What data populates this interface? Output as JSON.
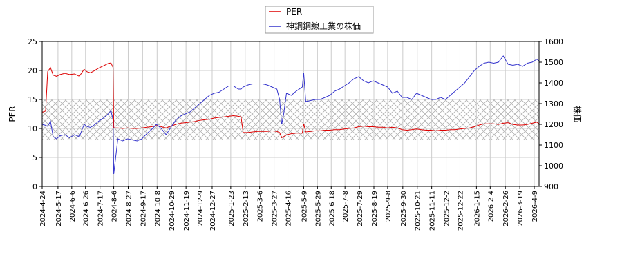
{
  "chart_data": {
    "type": "line",
    "legend": {
      "placement": "top-center",
      "entries": [
        {
          "label": "PER",
          "color": "#dd0000"
        },
        {
          "label": "神鋼鋼線工業の株価",
          "color": "#3333cc"
        }
      ]
    },
    "ylabel_left": "PER",
    "ylabel_right": "株価",
    "ylim_left": [
      0,
      25
    ],
    "ylim_right": [
      900,
      1600
    ],
    "yticks_left": [
      "0",
      "5",
      "10",
      "15",
      "20",
      "25"
    ],
    "yticks_right": [
      "900",
      "1000",
      "1100",
      "1200",
      "1300",
      "1400",
      "1500",
      "1600"
    ],
    "x_tick_labels": [
      "2024-4-24",
      "2024-5-17",
      "2024-6-6",
      "2024-6-26",
      "2024-7-17",
      "2024-8-6",
      "2024-8-27",
      "2024-9-17",
      "2024-10-8",
      "2024-10-29",
      "2024-11-19",
      "2024-12-9",
      "2024-12-27",
      "2025-1-23",
      "2025-2-13",
      "2025-3-6",
      "2025-3-27",
      "2025-4-16",
      "2025-5-9",
      "2025-5-29",
      "2025-6-18",
      "2025-7-8",
      "2025-7-29",
      "2025-8-19",
      "2025-9-8",
      "2025-9-30",
      "2025-10-21",
      "2025-11-11",
      "2025-12-2",
      "2025-12-22",
      "2026-1-15",
      "2026-2-4",
      "2026-2-26",
      "2026-3-19",
      "2026-4-9"
    ],
    "x_range": [
      "2024-4-24",
      "2026-4-16"
    ],
    "grid": true,
    "shaded_band_left": [
      8,
      15
    ],
    "series": [
      {
        "name": "PER",
        "axis": "left",
        "color": "#dd0000",
        "x": [
          "2024-4-24",
          "2024-4-29",
          "2024-5-2",
          "2024-5-6",
          "2024-5-10",
          "2024-5-15",
          "2024-5-20",
          "2024-5-27",
          "2024-6-3",
          "2024-6-10",
          "2024-6-17",
          "2024-6-24",
          "2024-6-28",
          "2024-7-3",
          "2024-7-8",
          "2024-7-15",
          "2024-7-22",
          "2024-7-29",
          "2024-8-2",
          "2024-8-5",
          "2024-8-6",
          "2024-8-12",
          "2024-8-19",
          "2024-8-26",
          "2024-9-2",
          "2024-9-9",
          "2024-9-16",
          "2024-9-23",
          "2024-9-30",
          "2024-10-7",
          "2024-10-14",
          "2024-10-21",
          "2024-10-28",
          "2024-11-4",
          "2024-11-11",
          "2024-11-18",
          "2024-11-25",
          "2024-12-2",
          "2024-12-9",
          "2024-12-16",
          "2024-12-23",
          "2024-12-30",
          "2025-1-6",
          "2025-1-13",
          "2025-1-20",
          "2025-1-27",
          "2025-2-3",
          "2025-2-7",
          "2025-2-10",
          "2025-2-17",
          "2025-2-24",
          "2025-3-3",
          "2025-3-10",
          "2025-3-17",
          "2025-3-24",
          "2025-3-31",
          "2025-4-4",
          "2025-4-7",
          "2025-4-10",
          "2025-4-14",
          "2025-4-21",
          "2025-4-28",
          "2025-5-7",
          "2025-5-9",
          "2025-5-12",
          "2025-5-19",
          "2025-5-26",
          "2025-6-2",
          "2025-6-9",
          "2025-6-16",
          "2025-6-23",
          "2025-6-30",
          "2025-7-7",
          "2025-7-14",
          "2025-7-21",
          "2025-7-28",
          "2025-8-4",
          "2025-8-11",
          "2025-8-18",
          "2025-8-25",
          "2025-9-1",
          "2025-9-8",
          "2025-9-15",
          "2025-9-22",
          "2025-9-29",
          "2025-10-6",
          "2025-10-13",
          "2025-10-20",
          "2025-10-27",
          "2025-11-3",
          "2025-11-10",
          "2025-11-17",
          "2025-11-24",
          "2025-12-1",
          "2025-12-8",
          "2025-12-15",
          "2025-12-22",
          "2025-12-29",
          "2026-1-5",
          "2026-1-12",
          "2026-1-19",
          "2026-1-26",
          "2026-2-2",
          "2026-2-9",
          "2026-2-16",
          "2026-2-23",
          "2026-3-2",
          "2026-3-9",
          "2026-3-16",
          "2026-3-23",
          "2026-3-30",
          "2026-4-6",
          "2026-4-13",
          "2026-4-16"
        ],
        "values": [
          12.8,
          13.0,
          19.8,
          20.5,
          19.2,
          19.0,
          19.3,
          19.5,
          19.3,
          19.4,
          19.0,
          20.2,
          19.8,
          19.6,
          19.9,
          20.4,
          20.8,
          21.2,
          21.3,
          20.5,
          10.1,
          10.1,
          10.0,
          10.1,
          10.0,
          10.0,
          10.1,
          10.2,
          10.3,
          10.5,
          10.3,
          10.1,
          10.4,
          10.7,
          10.9,
          11.0,
          11.1,
          11.2,
          11.4,
          11.5,
          11.6,
          11.8,
          11.9,
          12.0,
          12.1,
          12.2,
          12.1,
          12.0,
          9.3,
          9.3,
          9.4,
          9.5,
          9.5,
          9.5,
          9.6,
          9.5,
          9.3,
          8.4,
          8.6,
          8.9,
          9.1,
          9.2,
          9.2,
          10.8,
          9.4,
          9.5,
          9.6,
          9.6,
          9.7,
          9.7,
          9.8,
          9.8,
          9.9,
          10.0,
          10.1,
          10.3,
          10.4,
          10.3,
          10.3,
          10.2,
          10.2,
          10.1,
          10.2,
          10.1,
          9.8,
          9.7,
          9.8,
          9.9,
          9.8,
          9.7,
          9.7,
          9.6,
          9.7,
          9.7,
          9.8,
          9.8,
          9.9,
          10.0,
          10.1,
          10.3,
          10.6,
          10.8,
          10.8,
          10.8,
          10.7,
          10.9,
          11.0,
          10.7,
          10.6,
          10.6,
          10.7,
          10.9,
          11.1,
          10.8
        ]
      },
      {
        "name": "神鋼鋼線工業の株価",
        "axis": "right",
        "color": "#3333cc",
        "x": [
          "2024-4-24",
          "2024-4-29",
          "2024-5-2",
          "2024-5-6",
          "2024-5-10",
          "2024-5-15",
          "2024-5-20",
          "2024-5-27",
          "2024-6-3",
          "2024-6-10",
          "2024-6-17",
          "2024-6-24",
          "2024-6-28",
          "2024-7-3",
          "2024-7-8",
          "2024-7-15",
          "2024-7-22",
          "2024-7-29",
          "2024-8-2",
          "2024-8-5",
          "2024-8-6",
          "2024-8-12",
          "2024-8-19",
          "2024-8-26",
          "2024-9-2",
          "2024-9-9",
          "2024-9-16",
          "2024-9-23",
          "2024-9-30",
          "2024-10-7",
          "2024-10-14",
          "2024-10-21",
          "2024-10-28",
          "2024-11-4",
          "2024-11-11",
          "2024-11-18",
          "2024-11-25",
          "2024-12-2",
          "2024-12-9",
          "2024-12-16",
          "2024-12-23",
          "2024-12-30",
          "2025-1-6",
          "2025-1-13",
          "2025-1-20",
          "2025-1-27",
          "2025-2-3",
          "2025-2-7",
          "2025-2-10",
          "2025-2-17",
          "2025-2-24",
          "2025-3-3",
          "2025-3-10",
          "2025-3-17",
          "2025-3-24",
          "2025-3-31",
          "2025-4-4",
          "2025-4-7",
          "2025-4-10",
          "2025-4-14",
          "2025-4-21",
          "2025-4-28",
          "2025-5-7",
          "2025-5-9",
          "2025-5-12",
          "2025-5-19",
          "2025-5-26",
          "2025-6-2",
          "2025-6-9",
          "2025-6-16",
          "2025-6-23",
          "2025-6-30",
          "2025-7-7",
          "2025-7-14",
          "2025-7-21",
          "2025-7-28",
          "2025-8-4",
          "2025-8-11",
          "2025-8-18",
          "2025-8-25",
          "2025-9-1",
          "2025-9-8",
          "2025-9-15",
          "2025-9-22",
          "2025-9-29",
          "2025-10-6",
          "2025-10-13",
          "2025-10-20",
          "2025-10-27",
          "2025-11-3",
          "2025-11-10",
          "2025-11-17",
          "2025-11-24",
          "2025-12-1",
          "2025-12-8",
          "2025-12-15",
          "2025-12-22",
          "2025-12-29",
          "2026-1-5",
          "2026-1-12",
          "2026-1-19",
          "2026-1-26",
          "2026-2-2",
          "2026-2-9",
          "2026-2-16",
          "2026-2-23",
          "2026-3-2",
          "2026-3-9",
          "2026-3-16",
          "2026-3-23",
          "2026-3-30",
          "2026-4-6",
          "2026-4-13",
          "2026-4-16"
        ],
        "values": [
          1200,
          1195,
          1190,
          1215,
          1140,
          1130,
          1145,
          1150,
          1135,
          1150,
          1140,
          1200,
          1190,
          1185,
          1195,
          1215,
          1230,
          1250,
          1265,
          1220,
          960,
          1130,
          1120,
          1130,
          1125,
          1120,
          1130,
          1155,
          1175,
          1200,
          1180,
          1150,
          1185,
          1220,
          1240,
          1250,
          1260,
          1280,
          1300,
          1320,
          1340,
          1350,
          1355,
          1370,
          1385,
          1385,
          1370,
          1370,
          1380,
          1390,
          1395,
          1395,
          1395,
          1390,
          1380,
          1370,
          1320,
          1200,
          1250,
          1350,
          1340,
          1360,
          1380,
          1450,
          1310,
          1315,
          1320,
          1320,
          1330,
          1340,
          1360,
          1370,
          1385,
          1400,
          1420,
          1430,
          1410,
          1400,
          1410,
          1400,
          1390,
          1380,
          1350,
          1360,
          1330,
          1330,
          1320,
          1350,
          1340,
          1330,
          1320,
          1320,
          1330,
          1320,
          1340,
          1360,
          1380,
          1400,
          1430,
          1460,
          1480,
          1495,
          1500,
          1495,
          1500,
          1530,
          1490,
          1485,
          1490,
          1480,
          1495,
          1500,
          1515,
          1505
        ]
      }
    ]
  }
}
